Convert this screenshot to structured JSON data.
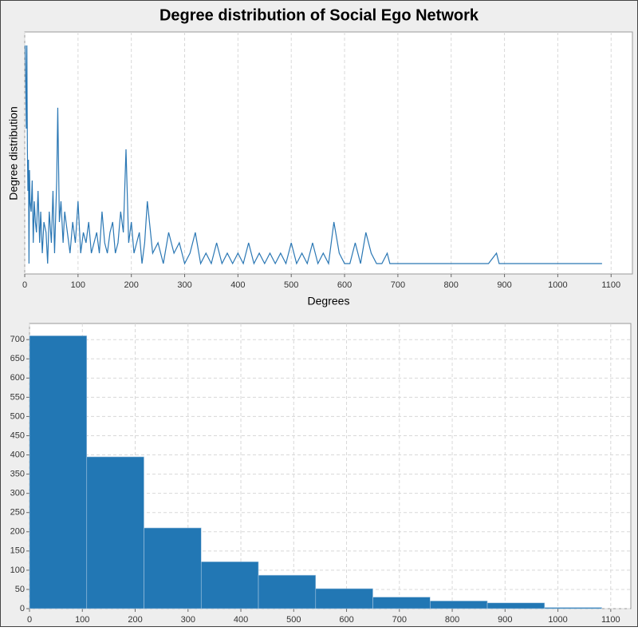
{
  "chart_data": [
    {
      "type": "line",
      "title": "Degree distribution of Social Ego Network",
      "x_label": "Degrees",
      "y_label": "Degree distribution",
      "x": [
        1,
        2,
        3,
        4,
        5,
        6,
        7,
        8,
        9,
        10,
        12,
        14,
        16,
        18,
        20,
        22,
        25,
        28,
        30,
        33,
        36,
        40,
        43,
        46,
        50,
        53,
        56,
        60,
        62,
        65,
        68,
        72,
        75,
        80,
        85,
        90,
        95,
        100,
        105,
        110,
        115,
        120,
        125,
        130,
        135,
        140,
        145,
        150,
        155,
        160,
        165,
        170,
        175,
        180,
        185,
        190,
        195,
        200,
        205,
        210,
        215,
        220,
        225,
        230,
        240,
        250,
        260,
        270,
        280,
        290,
        300,
        310,
        320,
        330,
        340,
        350,
        360,
        370,
        380,
        390,
        400,
        410,
        420,
        430,
        440,
        450,
        460,
        470,
        480,
        490,
        500,
        510,
        520,
        530,
        540,
        550,
        560,
        570,
        580,
        590,
        600,
        610,
        620,
        630,
        640,
        650,
        660,
        670,
        680,
        685,
        690,
        870,
        885,
        890,
        900,
        1083
      ],
      "values": [
        22,
        18,
        14,
        22,
        12,
        8,
        11,
        1,
        10,
        7,
        6,
        9,
        3,
        7,
        5,
        4,
        8,
        3,
        6,
        2,
        5,
        4,
        1,
        6,
        3,
        8,
        2,
        9,
        16,
        5,
        7,
        3,
        6,
        4,
        2,
        5,
        3,
        7,
        2,
        4,
        3,
        5,
        2,
        3,
        4,
        2,
        6,
        3,
        2,
        4,
        5,
        2,
        3,
        6,
        4,
        12,
        3,
        5,
        2,
        3,
        4,
        1,
        3,
        7,
        2,
        3,
        1,
        4,
        2,
        3,
        1,
        2,
        4,
        1,
        2,
        1,
        3,
        1,
        2,
        1,
        2,
        1,
        3,
        1,
        2,
        1,
        2,
        1,
        2,
        1,
        3,
        1,
        2,
        1,
        3,
        1,
        2,
        1,
        5,
        2,
        1,
        1,
        3,
        1,
        4,
        2,
        1,
        1,
        2,
        1,
        1,
        1,
        2,
        1,
        1,
        1
      ],
      "color": "#2a77b4",
      "xlim": [
        0,
        1140
      ],
      "ylim": [
        0,
        23.3
      ],
      "xticks": [
        0,
        100,
        200,
        300,
        400,
        500,
        600,
        700,
        800,
        900,
        1000,
        1100
      ],
      "grid": true
    },
    {
      "type": "histogram",
      "bins": [
        0,
        108.3,
        216.6,
        324.9,
        433.2,
        541.5,
        649.8,
        758.1,
        866.4,
        974.7,
        1083
      ],
      "values": [
        710,
        395,
        210,
        122,
        87,
        52,
        30,
        20,
        15,
        3
      ],
      "color": "#2277b4",
      "xlim": [
        0,
        1138
      ],
      "ylim": [
        0,
        742
      ],
      "xticks": [
        0,
        100,
        200,
        300,
        400,
        500,
        600,
        700,
        800,
        900,
        1000,
        1100
      ],
      "yticks": [
        0,
        50,
        100,
        150,
        200,
        250,
        300,
        350,
        400,
        450,
        500,
        550,
        600,
        650,
        700
      ],
      "grid": true
    }
  ]
}
